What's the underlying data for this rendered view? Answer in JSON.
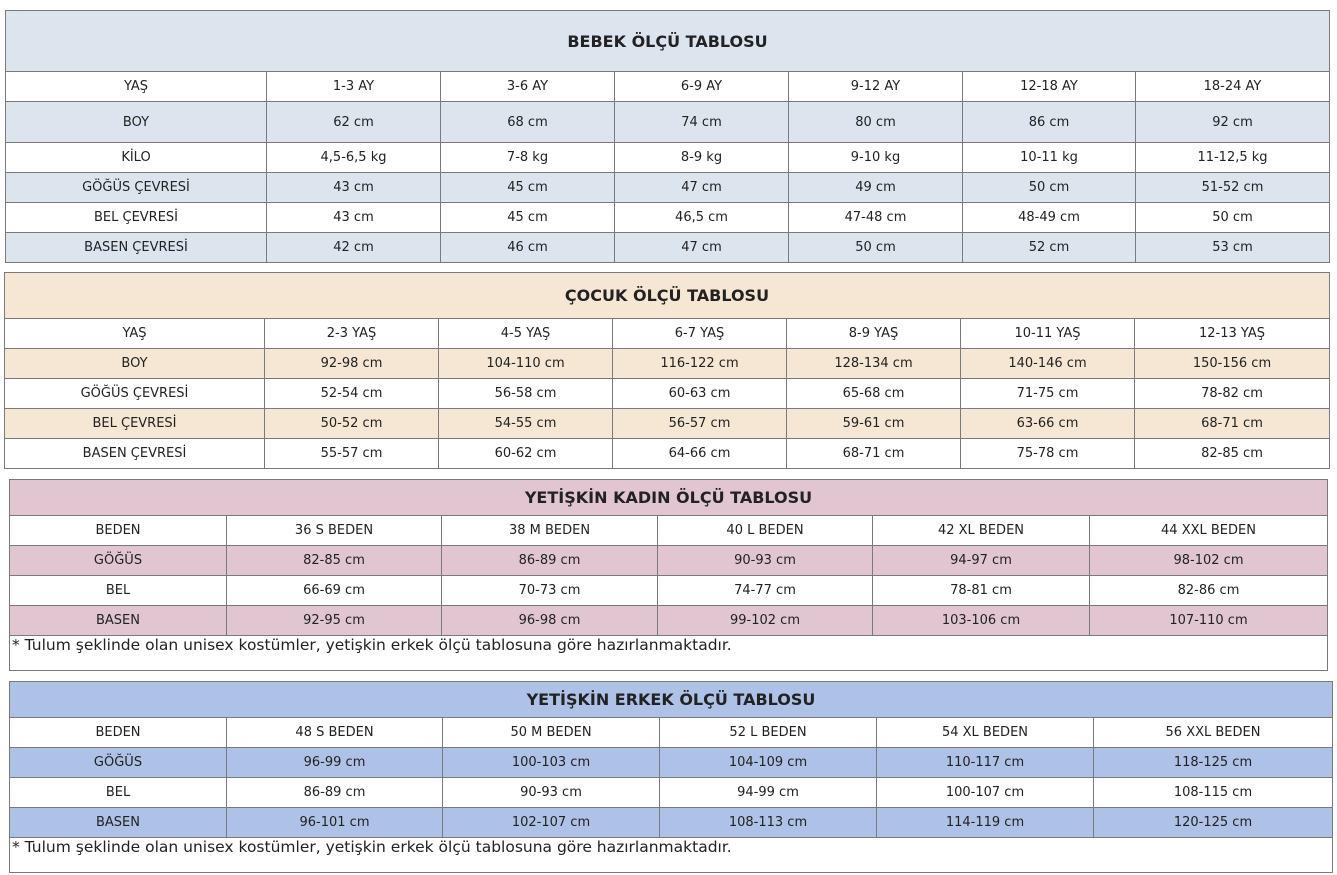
{
  "colors": {
    "bebek": "#dce5ed",
    "cocuk": "#f5e7d3",
    "kadin": "#e1c6d2",
    "erkek": "#adc2e6"
  },
  "bebek": {
    "title": "BEBEK ÖLÇÜ TABLOSU",
    "rows": [
      [
        "YAŞ",
        "1-3 AY",
        "3-6 AY",
        "6-9 AY",
        "9-12 AY",
        "12-18 AY",
        "18-24 AY"
      ],
      [
        "BOY",
        "62 cm",
        "68 cm",
        "74 cm",
        "80 cm",
        "86 cm",
        "92 cm"
      ],
      [
        "KİLO",
        "4,5-6,5 kg",
        "7-8 kg",
        "8-9 kg",
        "9-10 kg",
        "10-11 kg",
        "11-12,5 kg"
      ],
      [
        "GÖĞÜS ÇEVRESİ",
        "43 cm",
        "45 cm",
        "47 cm",
        "49 cm",
        "50 cm",
        "51-52 cm"
      ],
      [
        "BEL ÇEVRESİ",
        "43 cm",
        "45 cm",
        "46,5 cm",
        "47-48 cm",
        "48-49 cm",
        "50 cm"
      ],
      [
        "BASEN ÇEVRESİ",
        "42 cm",
        "46 cm",
        "47 cm",
        "50 cm",
        "52 cm",
        "53 cm"
      ]
    ]
  },
  "cocuk": {
    "title": "ÇOCUK ÖLÇÜ TABLOSU",
    "rows": [
      [
        "YAŞ",
        "2-3 YAŞ",
        "4-5 YAŞ",
        "6-7 YAŞ",
        "8-9 YAŞ",
        "10-11 YAŞ",
        "12-13 YAŞ"
      ],
      [
        "BOY",
        "92-98 cm",
        "104-110 cm",
        "116-122 cm",
        "128-134 cm",
        "140-146 cm",
        "150-156 cm"
      ],
      [
        "GÖĞÜS ÇEVRESİ",
        "52-54 cm",
        "56-58 cm",
        "60-63 cm",
        "65-68 cm",
        "71-75 cm",
        "78-82 cm"
      ],
      [
        "BEL ÇEVRESİ",
        "50-52 cm",
        "54-55 cm",
        "56-57 cm",
        "59-61 cm",
        "63-66 cm",
        "68-71 cm"
      ],
      [
        "BASEN ÇEVRESİ",
        "55-57 cm",
        "60-62 cm",
        "64-66 cm",
        "68-71 cm",
        "75-78 cm",
        "82-85 cm"
      ]
    ]
  },
  "kadin": {
    "title": "YETİŞKİN KADIN ÖLÇÜ TABLOSU",
    "rows": [
      [
        "BEDEN",
        "36 S BEDEN",
        "38 M BEDEN",
        "40 L BEDEN",
        "42 XL BEDEN",
        "44 XXL BEDEN"
      ],
      [
        "GÖĞÜS",
        "82-85 cm",
        "86-89 cm",
        "90-93 cm",
        "94-97 cm",
        "98-102 cm"
      ],
      [
        "BEL",
        "66-69 cm",
        "70-73 cm",
        "74-77 cm",
        "78-81 cm",
        "82-86 cm"
      ],
      [
        "BASEN",
        "92-95 cm",
        "96-98 cm",
        "99-102 cm",
        "103-106 cm",
        "107-110 cm"
      ]
    ],
    "note": "* Tulum şeklinde olan unisex kostümler, yetişkin erkek ölçü tablosuna göre hazırlanmaktadır."
  },
  "erkek": {
    "title": "YETİŞKİN ERKEK ÖLÇÜ TABLOSU",
    "rows": [
      [
        "BEDEN",
        "48 S BEDEN",
        "50 M BEDEN",
        "52 L BEDEN",
        "54 XL BEDEN",
        "56 XXL BEDEN"
      ],
      [
        "GÖĞÜS",
        "96-99 cm",
        "100-103 cm",
        "104-109 cm",
        "110-117 cm",
        "118-125 cm"
      ],
      [
        "BEL",
        "86-89 cm",
        "90-93 cm",
        "94-99 cm",
        "100-107 cm",
        "108-115 cm"
      ],
      [
        "BASEN",
        "96-101 cm",
        "102-107 cm",
        "108-113 cm",
        "114-119 cm",
        "120-125 cm"
      ]
    ],
    "note": "* Tulum şeklinde olan unisex kostümler, yetişkin erkek ölçü  tablosuna göre hazırlanmaktadır."
  }
}
